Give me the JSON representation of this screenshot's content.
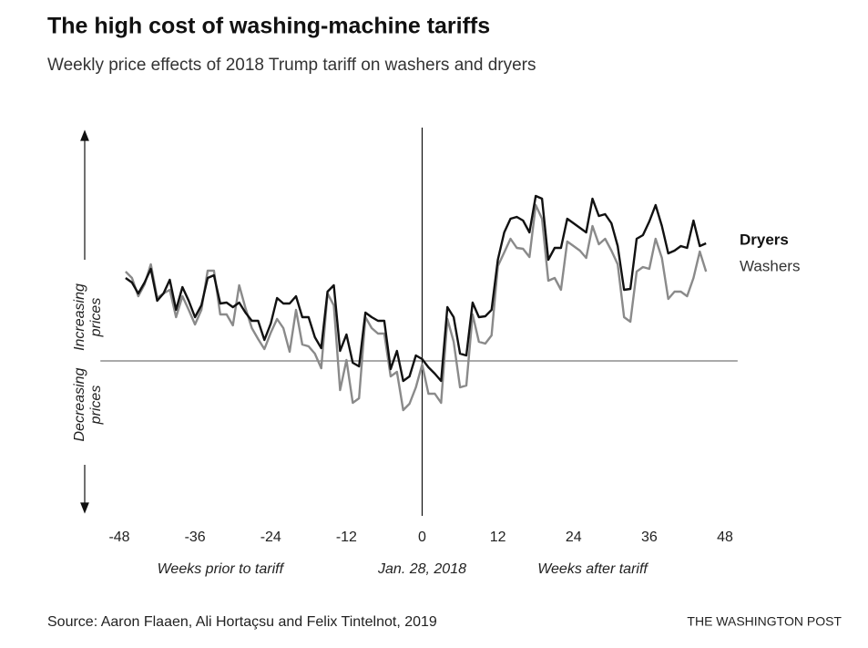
{
  "chart_data": {
    "type": "line",
    "title": "The high cost of washing-machine tariffs",
    "subtitle": "Weekly price effects of 2018 Trump tariff on washers and dryers",
    "x": [
      -47,
      -46,
      -45,
      -44,
      -43,
      -42,
      -41,
      -40,
      -39,
      -38,
      -37,
      -36,
      -35,
      -34,
      -33,
      -32,
      -31,
      -30,
      -29,
      -28,
      -27,
      -26,
      -25,
      -24,
      -23,
      -22,
      -21,
      -20,
      -19,
      -18,
      -17,
      -16,
      -15,
      -14,
      -13,
      -12,
      -11,
      -10,
      -9,
      -8,
      -7,
      -6,
      -5,
      -4,
      -3,
      -2,
      -1,
      0,
      1,
      2,
      3,
      4,
      5,
      6,
      7,
      8,
      9,
      10,
      11,
      12,
      13,
      14,
      15,
      16,
      17,
      18,
      19,
      20,
      21,
      22,
      23,
      24,
      25,
      26,
      27,
      28,
      29,
      30,
      31,
      32,
      33,
      34,
      35,
      36,
      37,
      38,
      39,
      40,
      41,
      42,
      43,
      44,
      45
    ],
    "series": [
      {
        "name": "Dryers",
        "color": "#111111",
        "values": [
          9.1,
          8.6,
          7.4,
          8.6,
          10.1,
          6.6,
          7.4,
          8.9,
          5.6,
          8.1,
          6.6,
          4.8,
          6.1,
          9.1,
          9.4,
          6.3,
          6.4,
          5.9,
          6.4,
          5.3,
          4.4,
          4.4,
          2.3,
          4.1,
          6.9,
          6.3,
          6.3,
          7.1,
          4.8,
          4.8,
          2.6,
          1.4,
          7.6,
          8.3,
          1.1,
          2.9,
          -0.2,
          -0.6,
          5.3,
          4.8,
          4.4,
          4.4,
          -0.9,
          1.1,
          -2.2,
          -1.7,
          0.6,
          0.2,
          -0.7,
          -1.4,
          -2.2,
          5.9,
          4.8,
          0.8,
          0.6,
          6.4,
          4.8,
          4.9,
          5.6,
          11.1,
          14.1,
          15.6,
          15.8,
          15.4,
          14.1,
          18.1,
          17.8,
          11.1,
          12.4,
          12.4,
          15.6,
          15.1,
          14.6,
          14.1,
          17.8,
          15.9,
          16.1,
          15.1,
          12.6,
          7.8,
          7.9,
          13.4,
          13.8,
          15.3,
          17.1,
          14.8,
          11.8,
          12.1,
          12.6,
          12.4,
          15.4,
          12.6,
          12.9
        ]
      },
      {
        "name": "Washers",
        "color": "#8a8a8a",
        "values": [
          9.8,
          9.1,
          7.1,
          8.4,
          10.6,
          6.9,
          7.4,
          7.8,
          4.8,
          7.1,
          5.6,
          4.0,
          5.6,
          9.9,
          9.9,
          5.1,
          5.1,
          3.9,
          8.3,
          5.8,
          3.6,
          2.4,
          1.3,
          3.1,
          4.6,
          3.6,
          1.0,
          5.6,
          1.8,
          1.6,
          0.8,
          -0.8,
          7.4,
          6.1,
          -3.2,
          0.1,
          -4.6,
          -4.1,
          4.8,
          3.6,
          3.0,
          3.0,
          -1.7,
          -1.2,
          -5.4,
          -4.7,
          -2.9,
          -0.4,
          -3.6,
          -3.6,
          -4.6,
          4.6,
          2.1,
          -2.9,
          -2.7,
          5.1,
          2.1,
          1.9,
          2.8,
          10.4,
          11.9,
          13.4,
          12.4,
          12.3,
          11.4,
          17.1,
          15.6,
          8.8,
          9.1,
          7.8,
          13.1,
          12.6,
          12.1,
          11.3,
          14.8,
          12.8,
          13.4,
          12.1,
          10.6,
          4.8,
          4.3,
          9.8,
          10.3,
          10.1,
          13.4,
          11.3,
          6.8,
          7.6,
          7.6,
          7.1,
          9.1,
          12.0,
          9.8
        ]
      }
    ],
    "xlim": [
      -51,
      50
    ],
    "ylim": [
      -17,
      25
    ],
    "xticks": [
      -48,
      -36,
      -24,
      -12,
      0,
      12,
      24,
      36,
      48
    ],
    "x_annotations": [
      {
        "value": -32,
        "label": "Weeks prior to tariff"
      },
      {
        "value": 0,
        "label": "Jan. 28, 2018"
      },
      {
        "value": 27,
        "label": "Weeks after tariff"
      }
    ],
    "y_annotations": [
      [
        "Increasing",
        "prices"
      ],
      [
        "Decreasing",
        "prices"
      ]
    ],
    "source": "Source: Aaron Flaaen, Ali Hortaçsu and Felix Tintelnot, 2019",
    "credit": "THE WASHINGTON POST"
  }
}
